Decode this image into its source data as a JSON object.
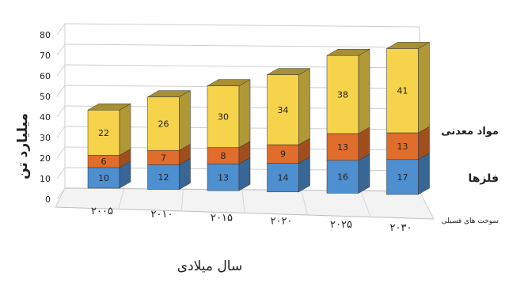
{
  "chart_data": {
    "type": "bar",
    "stacked": true,
    "three_d": true,
    "title": "",
    "xlabel": "سال میلادی",
    "ylabel": "میلیارد تن",
    "ylim": [
      0,
      80
    ],
    "yticks": [
      0,
      10,
      20,
      30,
      40,
      50,
      60,
      70,
      80
    ],
    "grid": true,
    "categories": [
      "۲۰۰۵",
      "۲۰۱۰",
      "۲۰۱۵",
      "۲۰۲۰",
      "۲۰۲۵",
      "۲۰۳۰"
    ],
    "series": [
      {
        "name": "سوخت های فسیلی",
        "color": "#4e8fd0",
        "values": [
          10,
          12,
          13,
          14,
          16,
          17
        ]
      },
      {
        "name": "فلزها",
        "color": "#e06d2b",
        "values": [
          6,
          7,
          8,
          9,
          13,
          13
        ]
      },
      {
        "name": "مواد معدنی",
        "color": "#f5d34b",
        "values": [
          22,
          26,
          30,
          34,
          38,
          41
        ]
      }
    ]
  }
}
